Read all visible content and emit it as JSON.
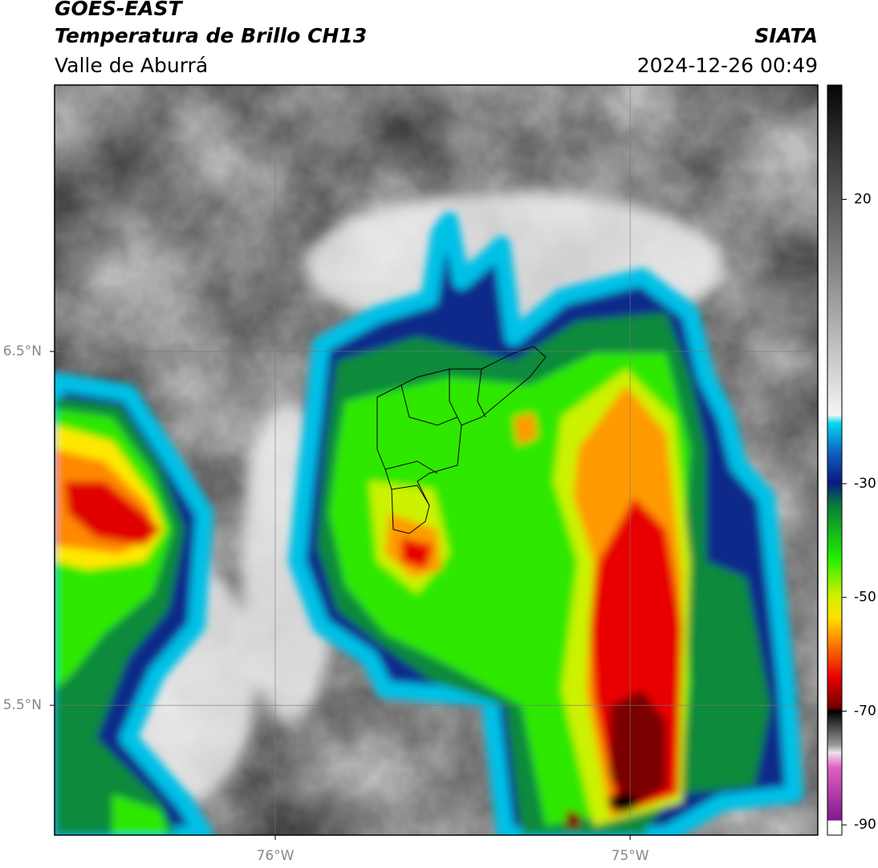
{
  "header": {
    "title": "GOES-EAST",
    "subtitle": "Temperatura de Brillo CH13",
    "region": "Valle de Aburrá",
    "source": "SIATA",
    "timestamp": "2024-12-26 00:49"
  },
  "map": {
    "lon_range": [
      -76.622,
      -74.471
    ],
    "lat_range": [
      5.133,
      7.253
    ],
    "lon_ticks": [
      {
        "value": -76,
        "label": "76°W"
      },
      {
        "value": -75,
        "label": "75°W"
      }
    ],
    "lat_ticks": [
      {
        "value": 6.5,
        "label": "6.5°N"
      },
      {
        "value": 5.5,
        "label": "5.5°N"
      }
    ]
  },
  "colorbar": {
    "range": [
      -91.8,
      40.1
    ],
    "ticks": [
      20,
      -30,
      -50,
      -70,
      -90
    ]
  }
}
